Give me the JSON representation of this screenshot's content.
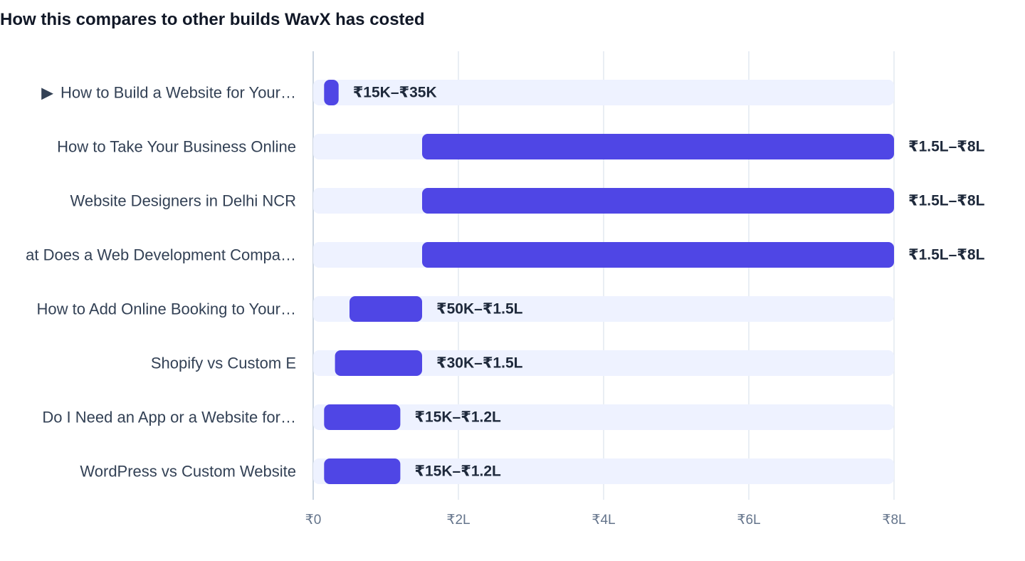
{
  "chart_data": {
    "type": "bar",
    "orientation": "horizontal",
    "title": "How this compares to other builds WavX has costed",
    "xlabel": "",
    "ylabel": "",
    "xlim": [
      0,
      8
    ],
    "unit": "lakh INR",
    "grid": true,
    "bar_colors": {
      "range": "#4f46e5",
      "track": "#eef2ff",
      "gridline": "#e2e8f0",
      "axis": "#cbd5e1"
    },
    "ticks": [
      {
        "value": 0,
        "label": "₹0"
      },
      {
        "value": 2,
        "label": "₹2L"
      },
      {
        "value": 4,
        "label": "₹4L"
      },
      {
        "value": 6,
        "label": "₹6L"
      },
      {
        "value": 8,
        "label": "₹8L"
      }
    ],
    "categories": [
      {
        "label": "How to Build a Website for Your…",
        "current": true,
        "current_marker": "▶",
        "low": 0.15,
        "high": 0.35,
        "value_label": "₹15K–₹35K"
      },
      {
        "label": "How to Take Your Business Online",
        "current": false,
        "low": 1.5,
        "high": 8,
        "value_label": "₹1.5L–₹8L"
      },
      {
        "label": "Website Designers in Delhi NCR",
        "current": false,
        "low": 1.5,
        "high": 8,
        "value_label": "₹1.5L–₹8L"
      },
      {
        "label": "at Does a Web Development Compa…",
        "current": false,
        "low": 1.5,
        "high": 8,
        "value_label": "₹1.5L–₹8L"
      },
      {
        "label": "How to Add Online Booking to Your…",
        "current": false,
        "low": 0.5,
        "high": 1.5,
        "value_label": "₹50K–₹1.5L"
      },
      {
        "label": "Shopify vs Custom E",
        "current": false,
        "low": 0.3,
        "high": 1.5,
        "value_label": "₹30K–₹1.5L"
      },
      {
        "label": "Do I Need an App or a Website for…",
        "current": false,
        "low": 0.15,
        "high": 1.2,
        "value_label": "₹15K–₹1.2L"
      },
      {
        "label": "WordPress vs Custom Website",
        "current": false,
        "low": 0.15,
        "high": 1.2,
        "value_label": "₹15K–₹1.2L"
      }
    ]
  }
}
